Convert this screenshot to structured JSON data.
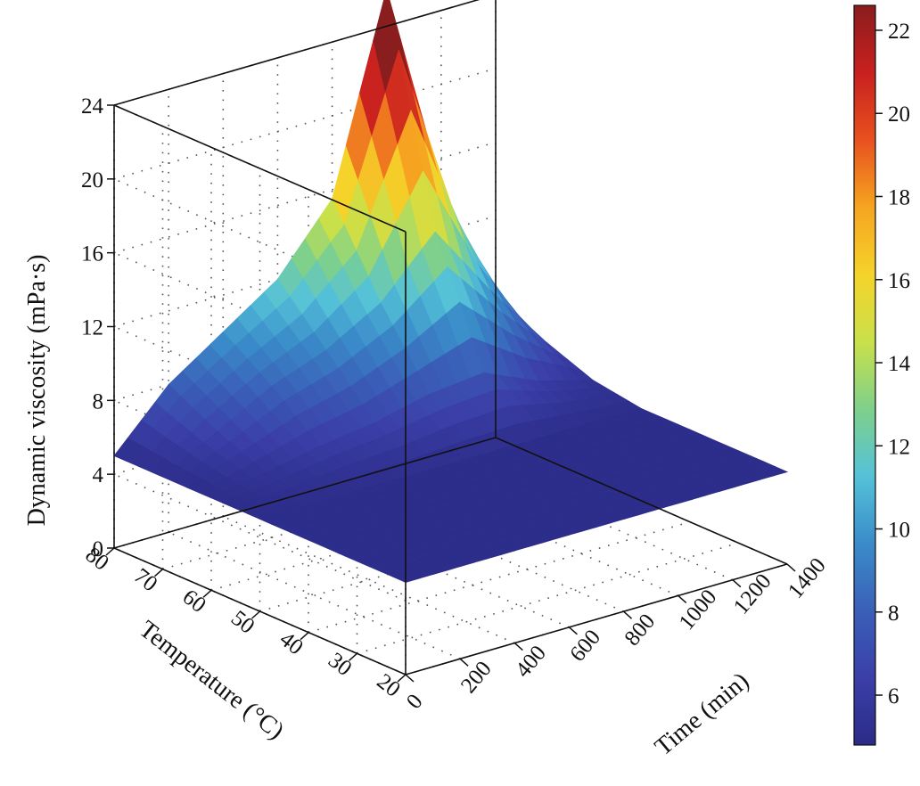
{
  "chart_data": {
    "type": "surface",
    "title": "",
    "xlabel": "Time (min)",
    "ylabel": "Temperature (°C)",
    "zlabel": "Dynamic viscosity (mPa·s)",
    "x_ticks": [
      "0",
      "200",
      "400",
      "600",
      "800",
      "1000",
      "1200",
      "1400"
    ],
    "y_ticks": [
      "20",
      "30",
      "40",
      "50",
      "60",
      "70",
      "80"
    ],
    "z_ticks": [
      "0",
      "4",
      "8",
      "12",
      "16",
      "20",
      "24"
    ],
    "xlim": [
      0,
      1400
    ],
    "ylim": [
      20,
      80
    ],
    "zlim": [
      0,
      24
    ],
    "grid": true,
    "surface": {
      "time_min": [
        0,
        200,
        400,
        600,
        800,
        1000,
        1200,
        1400
      ],
      "temperature_c": [
        20,
        30,
        40,
        50,
        60,
        70,
        80
      ],
      "viscosity_mpas": [
        [
          5.0,
          5.0,
          5.0,
          5.0,
          5.0,
          5.0,
          5.0,
          5.0
        ],
        [
          5.0,
          5.0,
          5.0,
          5.0,
          5.0,
          5.0,
          5.0,
          5.0
        ],
        [
          5.0,
          5.0,
          5.0,
          5.0,
          5.0,
          5.0,
          5.0,
          5.0
        ],
        [
          5.0,
          5.0,
          5.0,
          5.0,
          5.0,
          5.0,
          5.0,
          5.0
        ],
        [
          5.0,
          5.5,
          6.1,
          6.5,
          7.2,
          7.5,
          6.2,
          5.4
        ],
        [
          5.0,
          6.6,
          8.2,
          9.3,
          11.0,
          14.0,
          10.0,
          6.4
        ],
        [
          5.0,
          8.0,
          10.0,
          12.0,
          15.5,
          26.0,
          14.5,
          7.0
        ]
      ]
    },
    "colorbar": {
      "ticks": [
        "6",
        "8",
        "10",
        "12",
        "14",
        "16",
        "18",
        "20",
        "22"
      ],
      "range": [
        4.8,
        22.6
      ],
      "colors": [
        "#2b2b87",
        "#3b3fa8",
        "#3a60b8",
        "#3a8cc9",
        "#55c2d8",
        "#7fd08a",
        "#c9e04a",
        "#f5d32a",
        "#f6a421",
        "#e8511f",
        "#c8201f",
        "#8a1d1d"
      ]
    }
  }
}
